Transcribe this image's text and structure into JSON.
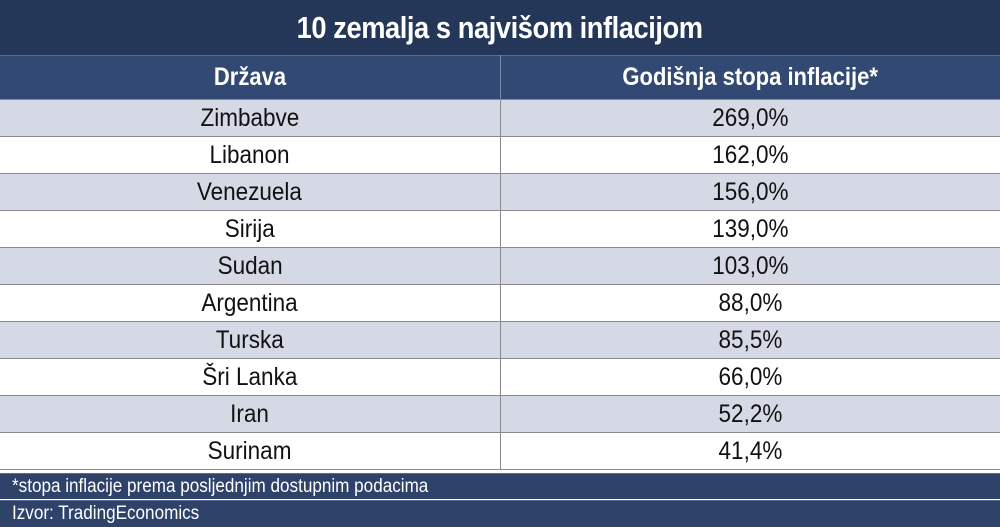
{
  "chart_data": {
    "type": "table",
    "title": "10 zemalja s najvišom inflacijom",
    "columns": [
      "Država",
      "Godišnja stopa inflacije*"
    ],
    "rows": [
      {
        "country": "Zimbabve",
        "value": "269,0%"
      },
      {
        "country": "Libanon",
        "value": "162,0%"
      },
      {
        "country": "Venezuela",
        "value": "156,0%"
      },
      {
        "country": "Sirija",
        "value": "139,0%"
      },
      {
        "country": "Sudan",
        "value": "103,0%"
      },
      {
        "country": "Argentina",
        "value": "88,0%"
      },
      {
        "country": "Turska",
        "value": "85,5%"
      },
      {
        "country": "Šri Lanka",
        "value": "66,0%"
      },
      {
        "country": "Iran",
        "value": "52,2%"
      },
      {
        "country": "Surinam",
        "value": "41,4%"
      }
    ],
    "values": [
      269.0,
      162.0,
      156.0,
      139.0,
      103.0,
      88.0,
      85.5,
      66.0,
      52.2,
      41.4
    ],
    "footnote": "*stopa inflacije prema posljednjim dostupnim podacima",
    "source": "Izvor: TradingEconomics"
  },
  "colors": {
    "title_bg": "#243758",
    "header_bg": "#324a73",
    "row_alt": "#d5d8e5",
    "row_plain": "#ffffff",
    "footer_bg": "#2e426a"
  }
}
